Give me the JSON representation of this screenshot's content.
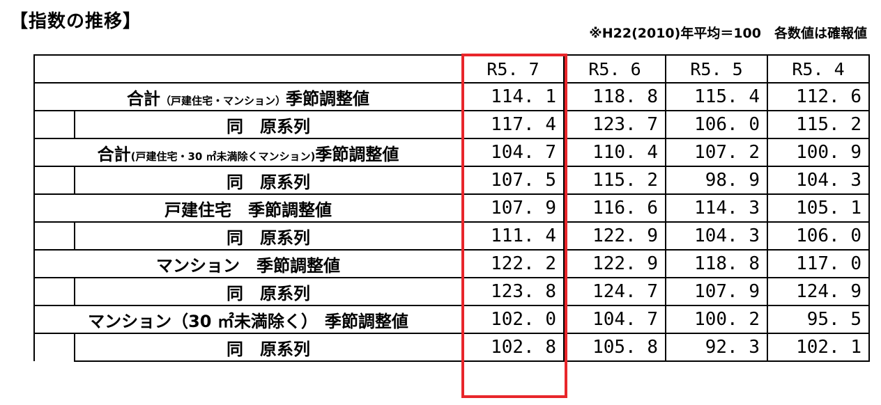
{
  "title": "【指数の推移】",
  "note": "※H22(2010)年平均＝100　各数値は確報値",
  "columns": [
    "R5. 7",
    "R5. 6",
    "R5. 5",
    "R5. 4"
  ],
  "rows": [
    {
      "label_main": "合計",
      "label_sub": "（戸建住宅・マンション）",
      "label_tail": "季節調整値",
      "values": [
        "114. 1",
        "118. 8",
        "115. 4",
        "112. 6"
      ]
    },
    {
      "label": "同　原系列",
      "values": [
        "117. 4",
        "123. 7",
        "106. 0",
        "115. 2"
      ]
    },
    {
      "label_main": "合計",
      "label_sub": "(戸建住宅・30 ㎡未満除くマンション)",
      "label_tail": "季節調整値",
      "values": [
        "104. 7",
        "110. 4",
        "107. 2",
        "100. 9"
      ]
    },
    {
      "label": "同　原系列",
      "values": [
        "107. 5",
        "115. 2",
        "98. 9",
        "104. 3"
      ]
    },
    {
      "label_main": "戸建住宅",
      "label_sub": "",
      "label_tail": "季節調整値",
      "values": [
        "107. 9",
        "116. 6",
        "114. 3",
        "105. 1"
      ]
    },
    {
      "label": "同　原系列",
      "values": [
        "111. 4",
        "122. 9",
        "104. 3",
        "106. 0"
      ]
    },
    {
      "label_main": "マンション",
      "label_sub": "",
      "label_tail": "季節調整値",
      "values": [
        "122. 2",
        "122. 9",
        "118. 8",
        "117. 0"
      ]
    },
    {
      "label": "同　原系列",
      "values": [
        "123. 8",
        "124. 7",
        "107. 9",
        "124. 9"
      ]
    },
    {
      "label_main": "マンション（30 ㎡未満除く）",
      "label_sub": "",
      "label_tail": "季節調整値",
      "values": [
        "102. 0",
        "104. 7",
        "100. 2",
        "95. 5"
      ]
    },
    {
      "label": "同　原系列",
      "values": [
        "102. 8",
        "105. 8",
        "92. 3",
        "102. 1"
      ]
    }
  ],
  "highlight_color": "#e8262b"
}
